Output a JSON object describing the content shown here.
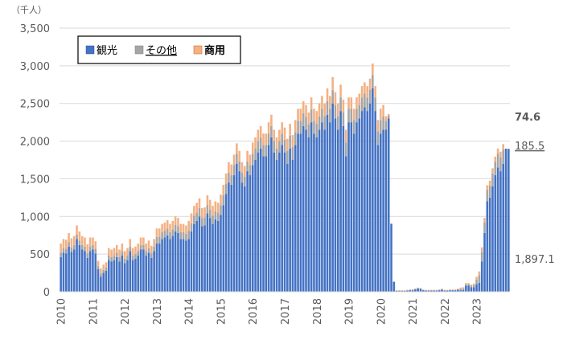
{
  "chart_data": {
    "type": "bar",
    "stacked": true,
    "y_unit_label": "（千人）",
    "ylim": [
      0,
      3500
    ],
    "yticks": [
      "0",
      "500",
      "1,000",
      "1,500",
      "2,000",
      "2,500",
      "3,000",
      "3,500"
    ],
    "ytick_values": [
      0,
      500,
      1000,
      1500,
      2000,
      2500,
      3000,
      3500
    ],
    "grid": true,
    "legend_position": "top-left",
    "x_year_labels": [
      "2010",
      "2011",
      "2012",
      "2013",
      "2014",
      "2015",
      "2016",
      "2017",
      "2018",
      "2019",
      "2020",
      "2021",
      "2022",
      "2023"
    ],
    "x_start": "2010-01",
    "x_end": "2023-08",
    "series": [
      {
        "name": "観光",
        "color": "#4472C4",
        "values": [
          460,
          520,
          510,
          600,
          530,
          560,
          700,
          620,
          560,
          540,
          450,
          540,
          560,
          510,
          300,
          200,
          250,
          280,
          420,
          400,
          420,
          460,
          400,
          480,
          380,
          420,
          540,
          420,
          440,
          480,
          560,
          560,
          480,
          520,
          450,
          540,
          640,
          640,
          700,
          720,
          750,
          700,
          740,
          800,
          780,
          700,
          700,
          680,
          700,
          800,
          900,
          940,
          1000,
          870,
          880,
          1040,
          980,
          900,
          960,
          940,
          1020,
          1150,
          1300,
          1450,
          1420,
          1550,
          1700,
          1600,
          1450,
          1400,
          1600,
          1550,
          1680,
          1750,
          1850,
          1900,
          1800,
          1800,
          1950,
          2050,
          1850,
          1750,
          1850,
          1950,
          1850,
          1700,
          1900,
          1750,
          1950,
          2100,
          2100,
          2200,
          2150,
          2050,
          2250,
          2100,
          2050,
          2150,
          2250,
          2150,
          2350,
          2250,
          2500,
          2300,
          2150,
          2400,
          2200,
          1800,
          2250,
          2250,
          2100,
          2250,
          2300,
          2400,
          2450,
          2400,
          2500,
          2700,
          2400,
          1950,
          2100,
          2150,
          2150,
          2300,
          900,
          130,
          10,
          10,
          10,
          10,
          15,
          20,
          20,
          30,
          45,
          40,
          20,
          15,
          15,
          15,
          15,
          15,
          20,
          30,
          15,
          15,
          20,
          20,
          20,
          30,
          20,
          25,
          80,
          80,
          60,
          60,
          100,
          120,
          400,
          780,
          1200,
          1250,
          1400,
          1550,
          1650,
          1600,
          1700,
          1900,
          1897.1
        ],
        "latest_label": "1,897.1"
      },
      {
        "name": "その他",
        "color": "#A5A5A5",
        "values": [
          60,
          60,
          60,
          60,
          60,
          60,
          60,
          60,
          60,
          60,
          60,
          60,
          60,
          60,
          40,
          40,
          40,
          40,
          60,
          60,
          60,
          60,
          60,
          60,
          60,
          60,
          60,
          60,
          60,
          60,
          60,
          60,
          60,
          60,
          60,
          60,
          90,
          90,
          90,
          90,
          90,
          90,
          90,
          90,
          90,
          90,
          90,
          90,
          110,
          110,
          110,
          110,
          110,
          110,
          110,
          110,
          110,
          110,
          110,
          110,
          130,
          130,
          130,
          130,
          130,
          130,
          130,
          130,
          130,
          130,
          130,
          130,
          150,
          150,
          150,
          150,
          150,
          150,
          150,
          150,
          150,
          150,
          150,
          150,
          170,
          170,
          170,
          170,
          170,
          170,
          170,
          170,
          170,
          170,
          170,
          170,
          180,
          180,
          180,
          180,
          180,
          180,
          180,
          180,
          180,
          180,
          180,
          180,
          180,
          180,
          180,
          180,
          180,
          180,
          180,
          180,
          180,
          180,
          180,
          180,
          180,
          180,
          120,
          40,
          5,
          5,
          5,
          5,
          5,
          5,
          5,
          5,
          8,
          8,
          5,
          5,
          5,
          5,
          5,
          5,
          5,
          5,
          5,
          5,
          5,
          5,
          5,
          5,
          5,
          5,
          20,
          20,
          20,
          20,
          20,
          30,
          60,
          100,
          130,
          140,
          150,
          160,
          170,
          175,
          180,
          185,
          185.5
        ],
        "latest_label": "185.5"
      },
      {
        "name": "商用",
        "color": "#F4B183",
        "values": [
          120,
          120,
          120,
          120,
          120,
          120,
          120,
          120,
          120,
          120,
          120,
          120,
          100,
          100,
          70,
          70,
          70,
          70,
          100,
          100,
          100,
          100,
          100,
          100,
          100,
          100,
          100,
          100,
          100,
          100,
          100,
          100,
          100,
          100,
          100,
          100,
          110,
          110,
          110,
          110,
          110,
          110,
          110,
          110,
          110,
          110,
          110,
          110,
          130,
          130,
          130,
          130,
          130,
          130,
          130,
          130,
          130,
          130,
          130,
          130,
          140,
          140,
          140,
          140,
          140,
          140,
          140,
          140,
          140,
          140,
          140,
          140,
          150,
          150,
          150,
          150,
          150,
          150,
          150,
          150,
          150,
          150,
          150,
          150,
          160,
          160,
          160,
          160,
          160,
          160,
          160,
          160,
          160,
          160,
          160,
          160,
          170,
          170,
          170,
          170,
          170,
          170,
          170,
          170,
          170,
          170,
          170,
          170,
          150,
          150,
          150,
          150,
          150,
          150,
          150,
          150,
          150,
          150,
          150,
          150,
          150,
          150,
          60,
          20,
          5,
          5,
          5,
          5,
          5,
          5,
          5,
          5,
          5,
          5,
          5,
          5,
          5,
          5,
          5,
          5,
          5,
          5,
          5,
          5,
          5,
          5,
          5,
          5,
          5,
          5,
          15,
          15,
          15,
          15,
          15,
          20,
          40,
          50,
          60,
          60,
          65,
          65,
          70,
          70,
          72,
          74,
          74.6
        ],
        "latest_label": "74.6"
      }
    ]
  }
}
